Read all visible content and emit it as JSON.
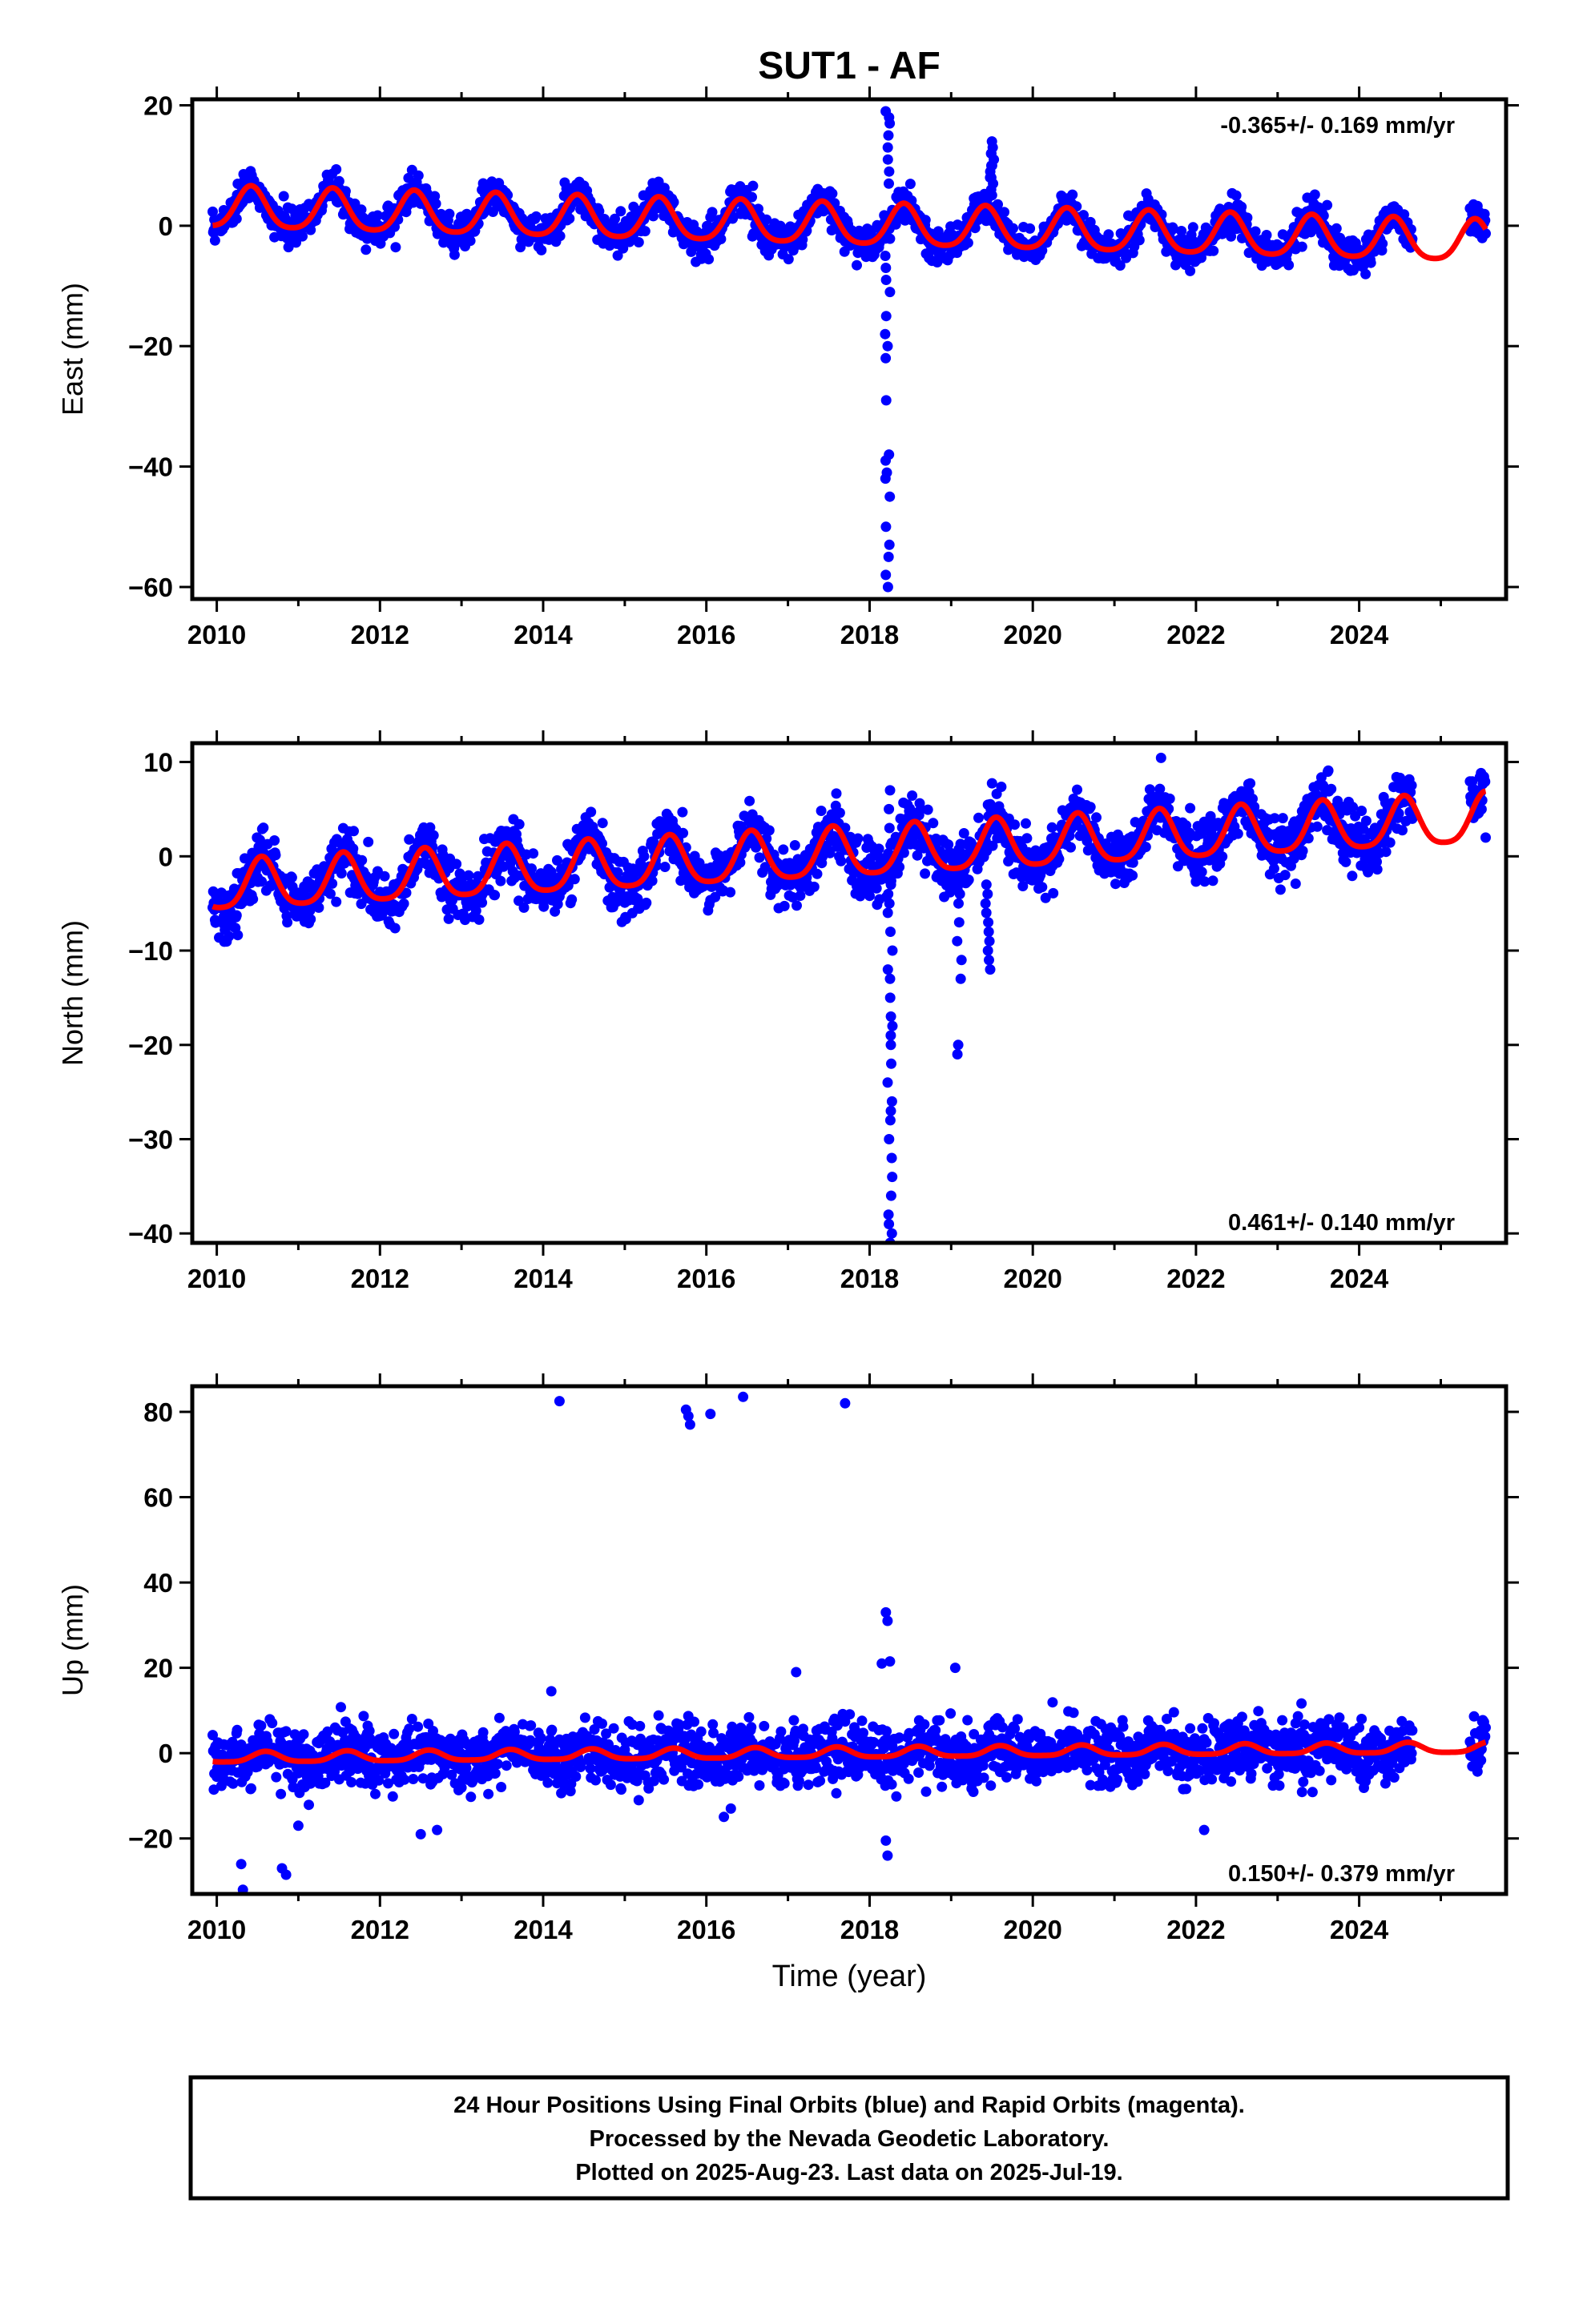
{
  "chart_data": {
    "type": "scatter",
    "title": "SUT1 - AF",
    "xlabel": "Time (year)",
    "x_range": [
      2009.7,
      2025.8
    ],
    "x_ticks": [
      "2010",
      "2012",
      "2014",
      "2016",
      "2018",
      "2020",
      "2022",
      "2024"
    ],
    "colors": {
      "final": "#0000ff",
      "fit": "#ff0000"
    },
    "panels": [
      {
        "name": "east",
        "ylabel": "East (mm)",
        "ylim": [
          -62,
          21
        ],
        "yticks": [
          20,
          0,
          -20,
          -40,
          -60
        ],
        "y_ticks": [
          "20",
          "0",
          "−20",
          "−40",
          "−60"
        ],
        "rate": "-0.365+/- 0.169 mm/yr",
        "rate_position": "top-right",
        "trend": {
          "ref_year": 2017.7,
          "offset": 0.0,
          "slope": -0.365
        },
        "seasonal": {
          "annual_amp": 3.4,
          "annual_phase_year": 0.42,
          "semi_amp": 0.6
        },
        "noise_mm": 1.4,
        "data_span": [
          2009.95,
          2025.55
        ],
        "gaps": [
          [
            2024.65,
            2025.35
          ]
        ],
        "anomalies": [
          {
            "year": 2018.22,
            "values": [
              -60,
              -58,
              -55,
              -53,
              -50,
              -45,
              -42,
              -41,
              -39,
              -38,
              -29,
              -22,
              -20,
              -18,
              -15,
              -11,
              -9,
              -7,
              -5,
              7,
              9,
              11,
              13,
              15,
              17,
              18,
              19
            ]
          },
          {
            "year": 2019.5,
            "values": [
              6,
              7,
              8,
              9,
              10,
              11,
              12,
              13,
              14,
              12,
              10,
              8
            ]
          }
        ]
      },
      {
        "name": "north",
        "ylabel": "North (mm)",
        "ylim": [
          -41,
          12
        ],
        "yticks": [
          10,
          0,
          -10,
          -20,
          -30,
          -40
        ],
        "y_ticks": [
          "10",
          "0",
          "−10",
          "−20",
          "−30",
          "−40"
        ],
        "rate": "0.461+/- 0.140 mm/yr",
        "rate_position": "bottom-right",
        "trend": {
          "ref_year": 2017.7,
          "offset": 0.2,
          "slope": 0.461
        },
        "seasonal": {
          "annual_amp": 2.6,
          "annual_phase_year": 0.55,
          "semi_amp": 0.5
        },
        "noise_mm": 1.5,
        "data_span": [
          2009.95,
          2025.55
        ],
        "gaps": [
          [
            2024.65,
            2025.35
          ]
        ],
        "anomalies": [
          {
            "year": 2018.25,
            "values": [
              -41,
              -40,
              -39,
              -38,
              -36,
              -34,
              -32,
              -30,
              -28,
              -27,
              -26,
              -24,
              -22,
              -20,
              -19,
              -18,
              -17,
              -15,
              -13,
              -12,
              -10,
              -8,
              -6,
              -5,
              -4,
              -3,
              -2,
              3,
              5,
              7
            ]
          },
          {
            "year": 2019.1,
            "values": [
              -21,
              -20,
              -13,
              -11,
              -9,
              -7,
              -5,
              -4
            ]
          },
          {
            "year": 2019.45,
            "values": [
              -12,
              -11,
              -10,
              -9,
              -8,
              -7,
              -6,
              -5,
              -4,
              -3
            ]
          }
        ]
      },
      {
        "name": "up",
        "ylabel": "Up (mm)",
        "ylim": [
          -33,
          86
        ],
        "yticks": [
          80,
          60,
          40,
          20,
          0,
          -20
        ],
        "y_ticks": [
          "80",
          "60",
          "40",
          "20",
          "0",
          "−20"
        ],
        "rate": "0.150+/- 0.379 mm/yr",
        "rate_position": "bottom-right",
        "trend": {
          "ref_year": 2017.7,
          "offset": 0.0,
          "slope": 0.15
        },
        "seasonal": {
          "annual_amp": 1.2,
          "annual_phase_year": 0.6,
          "semi_amp": 0.3
        },
        "noise_mm": 3.6,
        "data_span": [
          2009.95,
          2025.55
        ],
        "gaps": [
          [
            2024.65,
            2025.35
          ]
        ],
        "outliers": [
          [
            2014.2,
            82.5
          ],
          [
            2015.75,
            80.5
          ],
          [
            2015.78,
            79.0
          ],
          [
            2015.8,
            77.0
          ],
          [
            2016.05,
            79.5
          ],
          [
            2016.45,
            83.5
          ],
          [
            2017.7,
            82.0
          ],
          [
            2018.2,
            33.0
          ],
          [
            2018.22,
            31.0
          ],
          [
            2018.15,
            21.0
          ],
          [
            2018.25,
            21.5
          ],
          [
            2018.2,
            -20.5
          ],
          [
            2018.22,
            -24.0
          ],
          [
            2010.3,
            -26.0
          ],
          [
            2010.32,
            -32.0
          ],
          [
            2010.8,
            -27.0
          ],
          [
            2010.85,
            -28.5
          ],
          [
            2011.0,
            -17.0
          ],
          [
            2012.5,
            -19.0
          ],
          [
            2012.7,
            -18.0
          ],
          [
            2014.1,
            14.5
          ],
          [
            2017.1,
            19.0
          ],
          [
            2019.05,
            20.0
          ],
          [
            2022.1,
            -18.0
          ],
          [
            2016.3,
            -13.0
          ]
        ]
      }
    ]
  },
  "footer": {
    "line1": "24 Hour Positions Using Final Orbits (blue) and Rapid Orbits (magenta).",
    "line2": "Processed by the Nevada Geodetic Laboratory.",
    "line3": "Plotted on 2025-Aug-23. Last data on 2025-Jul-19."
  }
}
